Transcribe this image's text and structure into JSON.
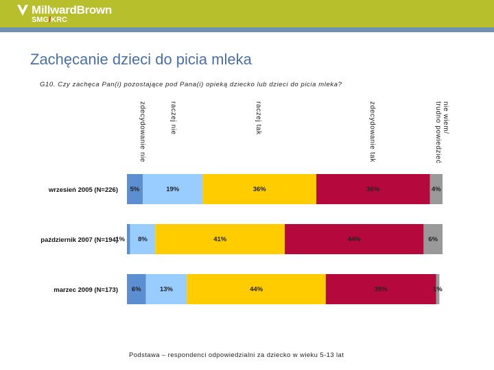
{
  "header": {
    "brand_name": "MillwardBrown",
    "brand_sub_left": "SMG",
    "brand_sub_slash": "/",
    "brand_sub_right": "KRC",
    "colors": {
      "bar": "#b7bf2c",
      "stripe": "#6f8fb5",
      "slash": "#d9261c"
    }
  },
  "page": {
    "title": "Zachęcanie dzieci do picia mleka",
    "question": "G10. Czy zachęca Pan(i) pozostające pod Pana(i) opieką dziecko lub dzieci do picia mleka?",
    "footnote": "Podstawa – respondenci odpowiedzialni za dziecko w wieku 5-13 lat"
  },
  "chart_data": {
    "type": "bar",
    "orientation": "horizontal",
    "stacked": true,
    "normalized": true,
    "xlim": [
      0,
      100
    ],
    "legend_position": "top, rotated labels above segments",
    "categories": [
      "wrzesień 2005 (N=226)",
      "październik 2007 (N=194)",
      "marzec 2009 (N=173)"
    ],
    "series": [
      {
        "name": "zdecydowanie nie",
        "color": "#5b8fd1",
        "values": [
          5,
          1,
          6
        ],
        "labels": [
          "5%",
          "1%",
          "6%"
        ]
      },
      {
        "name": "raczej nie",
        "color": "#99ccff",
        "values": [
          19,
          8,
          13
        ],
        "labels": [
          "19%",
          "8%",
          "13%"
        ]
      },
      {
        "name": "raczej tak",
        "color": "#ffcc00",
        "values": [
          36,
          41,
          44
        ],
        "labels": [
          "36%",
          "41%",
          "44%"
        ]
      },
      {
        "name": "zdecydowanie tak",
        "color": "#b5083d",
        "values": [
          36,
          44,
          35
        ],
        "labels": [
          "36%",
          "44%",
          "35%"
        ]
      },
      {
        "name": "nie wiem/ trudno powiedzieć",
        "color": "#999999",
        "values": [
          4,
          6,
          1
        ],
        "labels": [
          "4%",
          "6%",
          "1%"
        ]
      }
    ],
    "legend_lines": [
      [
        "zdecydowanie nie"
      ],
      [
        "raczej nie"
      ],
      [
        "raczej tak"
      ],
      [
        "zdecydowanie tak"
      ],
      [
        "nie wiem/",
        "trudno powiedzieć"
      ]
    ]
  }
}
